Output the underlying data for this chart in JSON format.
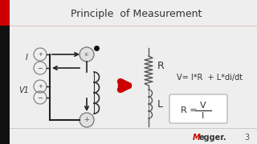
{
  "title": "Principle  of Measurement",
  "title_fontsize": 9,
  "bg_color": "#eeeeee",
  "left_stripe_red": "#cc0000",
  "left_stripe_dark": "#111111",
  "text_color": "#333333",
  "arrow_color": "#cc0000",
  "line_color": "#222222",
  "component_color": "#555555",
  "megger_M_color": "#cc0000",
  "megger_text_color": "#333333",
  "formula1": "V= I*R  + L*di/dt",
  "label_R": "R",
  "label_L": "L",
  "label_I": "I",
  "label_V1": "V1",
  "page_number": "3"
}
